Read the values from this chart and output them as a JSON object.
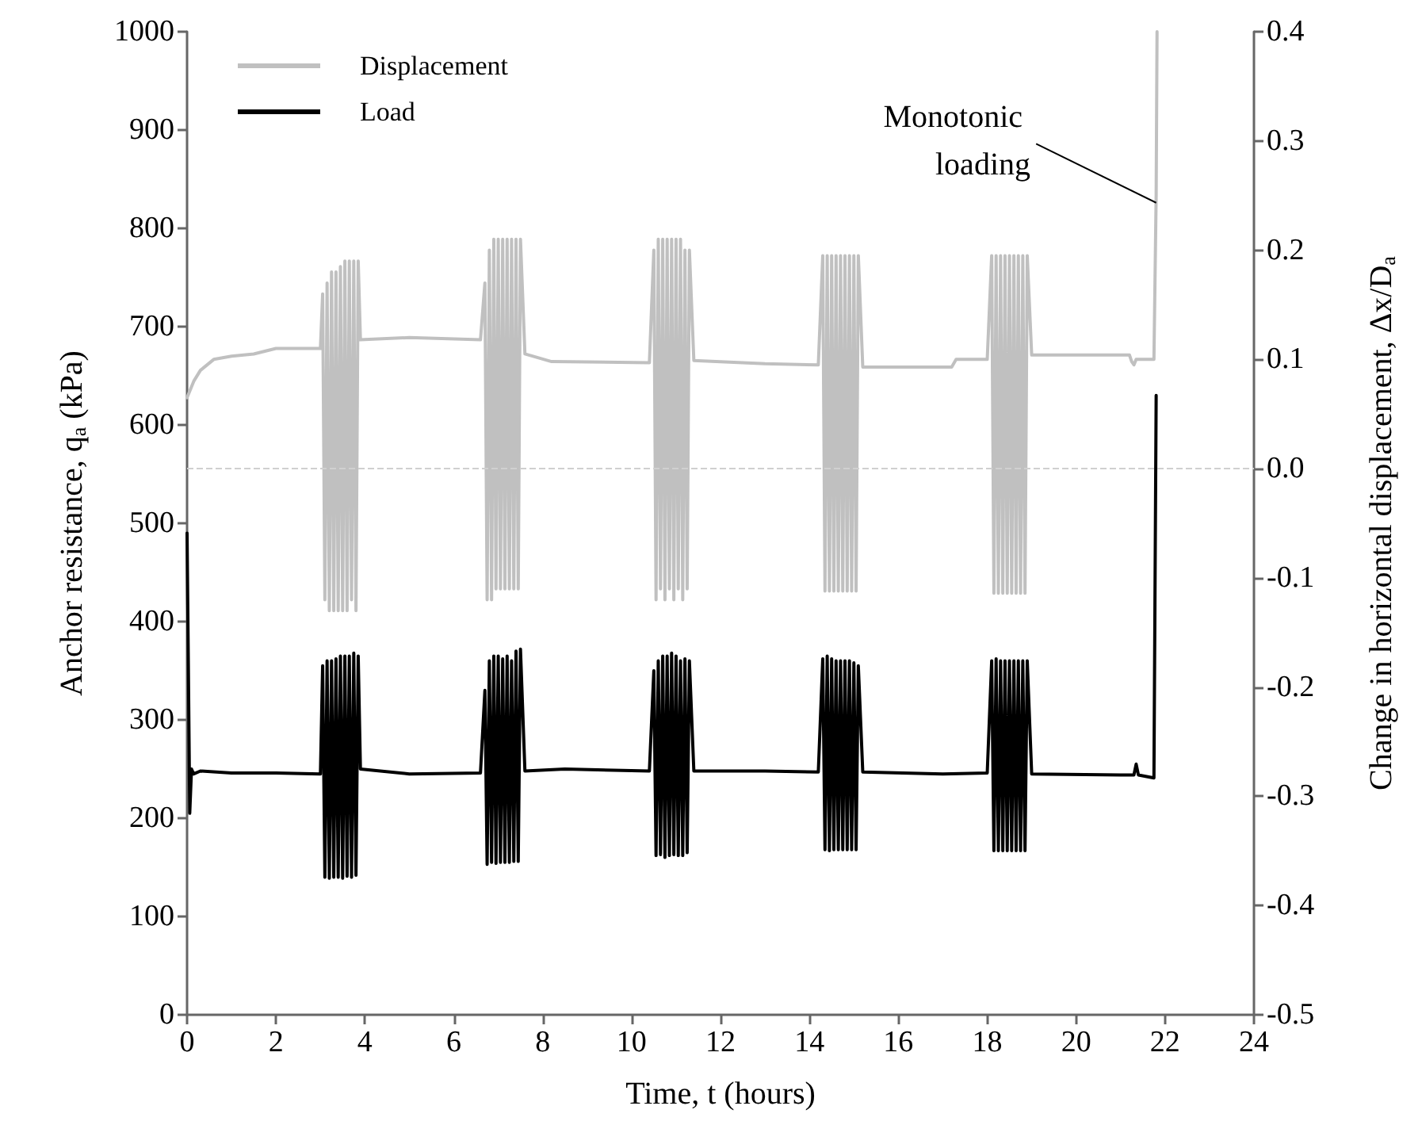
{
  "chart_data": {
    "type": "line",
    "xlabel": "Time, t (hours)",
    "ylabel": "Anchor resistance, q$_{a}$ (kPa)",
    "y2label": "Change in horizontal displacement, Δx/D$_{a}$",
    "series": [
      {
        "name": "Displacement",
        "color": "#c0c0c0",
        "axis": "y2",
        "x": [
          0,
          0.05,
          0.15,
          0.3,
          0.6,
          1,
          1.5,
          2,
          3,
          3.05,
          3.1,
          3.15,
          3.2,
          3.25,
          3.3,
          3.35,
          3.4,
          3.45,
          3.5,
          3.55,
          3.6,
          3.65,
          3.7,
          3.75,
          3.8,
          3.85,
          3.9,
          5,
          6.6,
          6.7,
          6.75,
          6.8,
          6.85,
          6.9,
          6.95,
          7,
          7.05,
          7.1,
          7.15,
          7.2,
          7.25,
          7.3,
          7.35,
          7.4,
          7.45,
          7.5,
          7.6,
          8.2,
          10.4,
          10.5,
          10.55,
          10.6,
          10.65,
          10.7,
          10.75,
          10.8,
          10.85,
          10.9,
          10.95,
          11,
          11.05,
          11.1,
          11.15,
          11.2,
          11.25,
          11.3,
          11.4,
          13,
          14.2,
          14.3,
          14.35,
          14.4,
          14.45,
          14.5,
          14.55,
          14.6,
          14.65,
          14.7,
          14.75,
          14.8,
          14.85,
          14.9,
          14.95,
          15,
          15.05,
          15.1,
          15.2,
          17.2,
          17.3,
          18,
          18.1,
          18.15,
          18.2,
          18.25,
          18.3,
          18.35,
          18.4,
          18.45,
          18.5,
          18.55,
          18.6,
          18.65,
          18.7,
          18.75,
          18.8,
          18.85,
          18.9,
          19,
          21.2,
          21.25,
          21.3,
          21.35,
          21.75,
          21.8,
          21.82
        ],
        "values": [
          0.065,
          0.07,
          0.08,
          0.09,
          0.1,
          0.103,
          0.105,
          0.11,
          0.11,
          0.16,
          -0.12,
          0.17,
          -0.13,
          0.18,
          -0.13,
          0.18,
          -0.13,
          0.185,
          -0.13,
          0.19,
          -0.13,
          0.19,
          -0.12,
          0.19,
          -0.13,
          0.19,
          0.118,
          0.12,
          0.118,
          0.17,
          -0.12,
          0.2,
          -0.12,
          0.21,
          -0.11,
          0.21,
          -0.11,
          0.21,
          -0.11,
          0.21,
          -0.11,
          0.21,
          -0.11,
          0.21,
          -0.11,
          0.21,
          0.105,
          0.098,
          0.097,
          0.2,
          -0.12,
          0.21,
          -0.11,
          0.21,
          -0.12,
          0.21,
          -0.11,
          0.21,
          -0.12,
          0.21,
          -0.11,
          0.21,
          -0.12,
          0.2,
          -0.11,
          0.2,
          0.099,
          0.096,
          0.095,
          0.195,
          -0.112,
          0.195,
          -0.112,
          0.195,
          -0.112,
          0.195,
          -0.112,
          0.195,
          -0.112,
          0.195,
          -0.112,
          0.195,
          -0.112,
          0.195,
          -0.112,
          0.195,
          0.093,
          0.093,
          0.1,
          0.1,
          0.195,
          -0.114,
          0.195,
          -0.114,
          0.195,
          -0.114,
          0.195,
          -0.114,
          0.195,
          -0.114,
          0.195,
          -0.114,
          0.195,
          -0.114,
          0.195,
          -0.114,
          0.195,
          0.104,
          0.104,
          0.098,
          0.095,
          0.1,
          0.1,
          0.25,
          0.4
        ]
      },
      {
        "name": "Load",
        "color": "#000000",
        "x": [
          0,
          0.03,
          0.06,
          0.1,
          0.15,
          0.3,
          1,
          2,
          3,
          3.05,
          3.1,
          3.15,
          3.2,
          3.25,
          3.3,
          3.35,
          3.4,
          3.45,
          3.5,
          3.55,
          3.6,
          3.65,
          3.7,
          3.75,
          3.8,
          3.85,
          3.9,
          5,
          6.6,
          6.7,
          6.75,
          6.8,
          6.85,
          6.9,
          6.95,
          7,
          7.05,
          7.1,
          7.15,
          7.2,
          7.25,
          7.3,
          7.35,
          7.4,
          7.45,
          7.5,
          7.6,
          8.5,
          10.4,
          10.5,
          10.55,
          10.6,
          10.65,
          10.7,
          10.75,
          10.8,
          10.85,
          10.9,
          10.95,
          11,
          11.05,
          11.1,
          11.15,
          11.2,
          11.25,
          11.3,
          11.4,
          13,
          14.2,
          14.3,
          14.35,
          14.4,
          14.45,
          14.5,
          14.55,
          14.6,
          14.65,
          14.7,
          14.75,
          14.8,
          14.85,
          14.9,
          14.95,
          15,
          15.05,
          15.1,
          15.2,
          17,
          18,
          18.1,
          18.15,
          18.2,
          18.25,
          18.3,
          18.35,
          18.4,
          18.45,
          18.5,
          18.55,
          18.6,
          18.65,
          18.7,
          18.75,
          18.8,
          18.85,
          18.9,
          19,
          21,
          21.3,
          21.35,
          21.4,
          21.75,
          21.8
        ],
        "values": [
          490,
          350,
          205,
          250,
          245,
          248,
          246,
          246,
          245,
          355,
          140,
          360,
          139,
          360,
          140,
          362,
          140,
          365,
          139,
          365,
          141,
          365,
          140,
          368,
          142,
          365,
          250,
          245,
          246,
          330,
          153,
          360,
          155,
          365,
          154,
          365,
          155,
          362,
          155,
          365,
          155,
          360,
          156,
          370,
          156,
          372,
          248,
          250,
          248,
          350,
          162,
          360,
          163,
          365,
          160,
          365,
          162,
          368,
          163,
          365,
          162,
          360,
          162,
          362,
          165,
          360,
          248,
          248,
          247,
          362,
          168,
          365,
          167,
          362,
          168,
          360,
          168,
          360,
          168,
          360,
          168,
          360,
          168,
          358,
          168,
          355,
          247,
          245,
          246,
          360,
          167,
          362,
          167,
          360,
          167,
          360,
          167,
          360,
          167,
          360,
          167,
          360,
          167,
          360,
          167,
          360,
          245,
          244,
          244,
          255,
          244,
          241,
          630
        ]
      }
    ],
    "xlim": [
      0,
      24
    ],
    "xticks": [
      0,
      2,
      4,
      6,
      8,
      10,
      12,
      14,
      16,
      18,
      20,
      22,
      24
    ],
    "ylim": [
      0,
      1000
    ],
    "yticks": [
      0,
      100,
      200,
      300,
      400,
      500,
      600,
      700,
      800,
      900,
      1000
    ],
    "y2lim": [
      -0.5,
      0.4
    ],
    "y2ticks": [
      -0.5,
      -0.4,
      -0.3,
      -0.2,
      -0.1,
      {
        "value": 0,
        "label": "0.0"
      },
      0.1,
      0.2,
      0.3,
      0.4
    ],
    "ref_lines": [
      {
        "axis": "y2",
        "value": 0,
        "color": "#d0d0d0",
        "line_style": "dashed"
      }
    ],
    "annotations": [
      {
        "text": "Monotonic loading",
        "x": 21.8,
        "y": 826
      }
    ],
    "legend": "top left",
    "grid": false,
    "marker": "none",
    "line_style": "solid"
  }
}
